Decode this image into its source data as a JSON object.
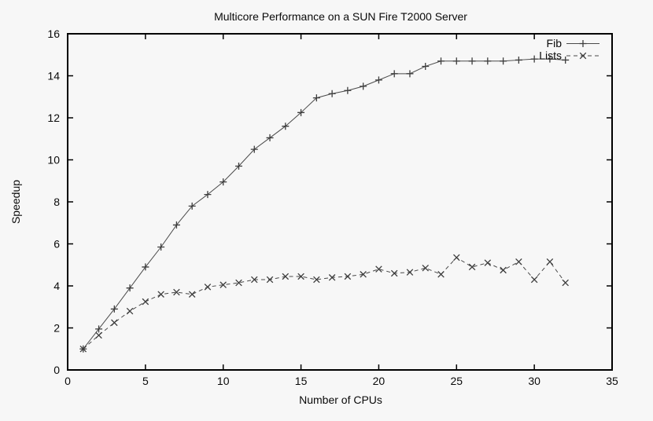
{
  "page": {
    "background_color": "#f7f7f7",
    "axis_color": "#000000",
    "text_color": "#0a0a0a"
  },
  "chart_data": {
    "type": "line",
    "title": "Multicore Performance on a SUN Fire T2000 Server",
    "xlabel": "Number of CPUs",
    "ylabel": "Speedup",
    "xlim": [
      0,
      35
    ],
    "ylim": [
      0,
      16
    ],
    "xticks": [
      0,
      5,
      10,
      15,
      20,
      25,
      30,
      35
    ],
    "yticks": [
      0,
      2,
      4,
      6,
      8,
      10,
      12,
      14,
      16
    ],
    "grid": false,
    "legend_position": "top-right-inside",
    "x": [
      1,
      2,
      3,
      4,
      5,
      6,
      7,
      8,
      9,
      10,
      11,
      12,
      13,
      14,
      15,
      16,
      17,
      18,
      19,
      20,
      21,
      22,
      23,
      24,
      25,
      26,
      27,
      28,
      29,
      30,
      31,
      32
    ],
    "series": [
      {
        "name": "Fib",
        "marker": "plus",
        "line_style": "solid",
        "color": "#4a4a4a",
        "values": [
          1.0,
          1.95,
          2.9,
          3.9,
          4.9,
          5.85,
          6.9,
          7.8,
          8.35,
          8.95,
          9.7,
          10.5,
          11.05,
          11.6,
          12.25,
          12.95,
          13.15,
          13.3,
          13.5,
          13.8,
          14.1,
          14.1,
          14.45,
          14.7,
          14.7,
          14.7,
          14.7,
          14.7,
          14.75,
          14.8,
          14.8,
          14.75
        ]
      },
      {
        "name": "Lists",
        "marker": "cross",
        "line_style": "dashed",
        "color": "#4a4a4a",
        "values": [
          1.0,
          1.65,
          2.25,
          2.8,
          3.25,
          3.6,
          3.7,
          3.6,
          3.95,
          4.05,
          4.15,
          4.3,
          4.3,
          4.45,
          4.45,
          4.3,
          4.4,
          4.45,
          4.55,
          4.8,
          4.6,
          4.65,
          4.85,
          4.55,
          5.35,
          4.9,
          5.1,
          4.75,
          5.15,
          4.3,
          5.15,
          4.15
        ]
      }
    ]
  }
}
